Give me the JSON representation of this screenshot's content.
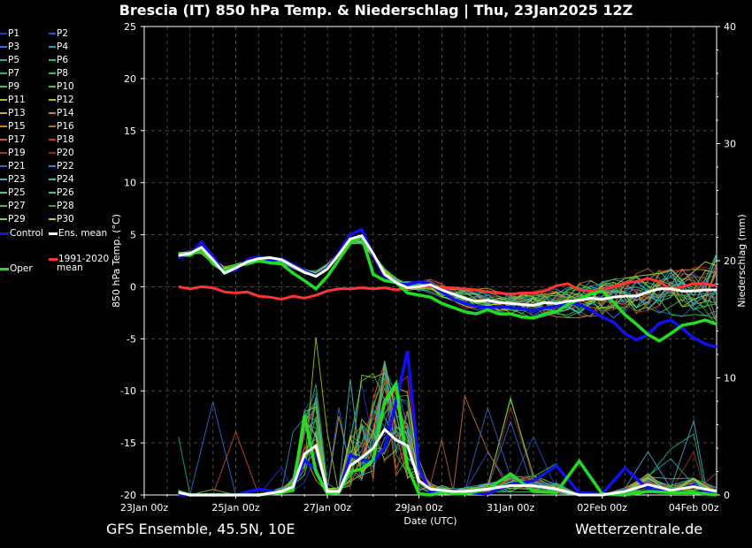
{
  "title": "Brescia  (IT)  850 hPa Temp. & Niederschlag | Thu, 23Jan2025 12Z",
  "footer": {
    "model": "GFS Ensemble, 45.5N, 10E",
    "source": "Wetterzentrale.de"
  },
  "legend": {
    "members": [
      {
        "label": "P1",
        "color": "#2233cc"
      },
      {
        "label": "P2",
        "color": "#2255dd"
      },
      {
        "label": "P3",
        "color": "#2277dd"
      },
      {
        "label": "P4",
        "color": "#2299cc"
      },
      {
        "label": "P5",
        "color": "#22aaaa"
      },
      {
        "label": "P6",
        "color": "#22bb88"
      },
      {
        "label": "P7",
        "color": "#22bb66"
      },
      {
        "label": "P8",
        "color": "#22cc55"
      },
      {
        "label": "P9",
        "color": "#33cc33"
      },
      {
        "label": "P10",
        "color": "#44cc22"
      },
      {
        "label": "P11",
        "color": "#99cc22"
      },
      {
        "label": "P12",
        "color": "#bbbb22"
      },
      {
        "label": "P13",
        "color": "#ccaa22"
      },
      {
        "label": "P14",
        "color": "#cc8822"
      },
      {
        "label": "P15",
        "color": "#cc7733"
      },
      {
        "label": "P16",
        "color": "#bb6633"
      },
      {
        "label": "P17",
        "color": "#cc5533"
      },
      {
        "label": "P18",
        "color": "#cc3333"
      },
      {
        "label": "P19",
        "color": "#aa3322"
      },
      {
        "label": "P20",
        "color": "#992222"
      },
      {
        "label": "P21",
        "color": "#3366cc"
      },
      {
        "label": "P22",
        "color": "#3388dd"
      },
      {
        "label": "P23",
        "color": "#44aacc"
      },
      {
        "label": "P24",
        "color": "#44bbbb"
      },
      {
        "label": "P25",
        "color": "#33cc99"
      },
      {
        "label": "P26",
        "color": "#33cc77"
      },
      {
        "label": "P27",
        "color": "#44bb55"
      },
      {
        "label": "P28",
        "color": "#33aa44"
      },
      {
        "label": "P29",
        "color": "#88cc33"
      },
      {
        "label": "P30",
        "color": "#cccc22"
      }
    ],
    "control": {
      "label": "Control",
      "color": "#1111ee"
    },
    "ens_mean": {
      "label": "Ens. mean",
      "color": "#ffffff"
    },
    "climate": {
      "label_line1": "1991-2020",
      "label_line2": "mean",
      "color": "#ff3333"
    },
    "oper": {
      "label": "Oper",
      "color": "#22dd22"
    }
  },
  "chart_data": {
    "type": "line",
    "xlabel": "Date (UTC)",
    "ylabel_left": "850 hPa Temp. (°C)",
    "ylabel_right": "Niederschlag (mm)",
    "ylim_left": [
      -20,
      25
    ],
    "ylim_right": [
      0,
      40
    ],
    "xlim_days": [
      0,
      12.5
    ],
    "x_ticks": [
      {
        "day": 0,
        "label": "23Jan 00z"
      },
      {
        "day": 2,
        "label": "25Jan 00z"
      },
      {
        "day": 4,
        "label": "27Jan 00z"
      },
      {
        "day": 6,
        "label": "29Jan 00z"
      },
      {
        "day": 8,
        "label": "31Jan 00z"
      },
      {
        "day": 10,
        "label": "02Feb 00z"
      },
      {
        "day": 12,
        "label": "04Feb 00z"
      }
    ],
    "y_ticks_left": [
      25,
      20,
      15,
      10,
      5,
      0,
      -5,
      -10,
      -15,
      -20
    ],
    "y_ticks_right": [
      40,
      30,
      20,
      10,
      0
    ],
    "grid": true,
    "temp_times": [
      0.75,
      1.0,
      1.25,
      1.5,
      1.75,
      2.0,
      2.25,
      2.5,
      2.75,
      3.0,
      3.25,
      3.5,
      3.75,
      4.0,
      4.25,
      4.5,
      4.75,
      5.0,
      5.25,
      5.5,
      5.75,
      6.0,
      6.25,
      6.5,
      6.75,
      7.0,
      7.25,
      7.5,
      7.75,
      8.0,
      8.25,
      8.5,
      8.75,
      9.0,
      9.25,
      9.5,
      9.75,
      10.0,
      10.25,
      10.5,
      10.75,
      11.0,
      11.25,
      11.5,
      11.75,
      12.0,
      12.25,
      12.5
    ],
    "climate_mean": [
      0,
      -0.2,
      0,
      -0.1,
      -0.5,
      -0.6,
      -0.5,
      -0.9,
      -1.0,
      -1.2,
      -0.9,
      -1.1,
      -0.8,
      -0.4,
      -0.2,
      -0.2,
      -0.1,
      -0.2,
      -0.1,
      -0.3,
      -0.1,
      0,
      0,
      -0.1,
      -0.1,
      -0.2,
      -0.3,
      -0.5,
      -0.6,
      -0.7,
      -0.6,
      -0.6,
      -0.4,
      0.1,
      0.3,
      -0.3,
      -0.4,
      -0.3,
      0,
      0.4,
      0.5,
      0.8,
      0.5,
      -0.3,
      0,
      0.3,
      0.3,
      0.1
    ],
    "ens_mean": [
      3.0,
      3.2,
      3.8,
      2.6,
      1.3,
      1.8,
      2.4,
      2.7,
      2.8,
      2.6,
      2.0,
      1.4,
      1.0,
      1.7,
      3.1,
      4.6,
      4.9,
      3.2,
      1.2,
      0.4,
      -0.1,
      0,
      0.2,
      -0.3,
      -0.7,
      -1.1,
      -1.4,
      -1.3,
      -1.5,
      -1.6,
      -1.7,
      -1.8,
      -1.5,
      -1.6,
      -1.4,
      -1.3,
      -1.1,
      -1.2,
      -1.0,
      -0.9,
      -0.9,
      -0.5,
      -0.2,
      -0.2,
      -0.4,
      -0.4,
      -0.3,
      -0.3
    ],
    "control": [
      2.8,
      3.1,
      4.3,
      2.9,
      1.4,
      1.6,
      2.6,
      2.9,
      2.5,
      2.7,
      2.1,
      1.5,
      1.1,
      1.8,
      3.3,
      5.0,
      5.5,
      3.0,
      1.0,
      0.3,
      0.2,
      0.5,
      0.3,
      -0.5,
      -1.2,
      -1.6,
      -1.9,
      -2.0,
      -1.9,
      -2.0,
      -2.1,
      -2.3,
      -2.0,
      -1.9,
      -1.5,
      -1.7,
      -2.2,
      -2.9,
      -3.4,
      -4.5,
      -5.1,
      -4.6,
      -3.5,
      -3.2,
      -4.0,
      -4.9,
      -5.5,
      -5.8
    ],
    "oper": [
      3.1,
      3.0,
      3.7,
      2.2,
      1.5,
      2.0,
      2.2,
      2.5,
      2.3,
      2.2,
      1.3,
      0.6,
      -0.2,
      1.0,
      2.6,
      4.2,
      4.8,
      1.2,
      0.6,
      0.4,
      -0.6,
      -0.8,
      -1.0,
      -1.6,
      -2.0,
      -2.4,
      -2.6,
      -2.2,
      -2.6,
      -2.6,
      -2.9,
      -3.0,
      -2.6,
      -2.4,
      -1.7,
      -1.2,
      -0.7,
      -0.4,
      -1.5,
      -2.7,
      -3.6,
      -4.6,
      -5.2,
      -4.5,
      -3.7,
      -3.5,
      -3.2,
      -3.6
    ],
    "precip_times": [
      0.75,
      1.0,
      1.5,
      2.0,
      2.5,
      3.0,
      3.25,
      3.5,
      3.75,
      4.0,
      4.25,
      4.5,
      4.75,
      5.0,
      5.25,
      5.5,
      5.75,
      6.0,
      6.25,
      6.5,
      6.75,
      7.0,
      7.5,
      8.0,
      8.5,
      9.0,
      9.5,
      10.0,
      10.5,
      11.0,
      11.5,
      12.0,
      12.25,
      12.5
    ],
    "precip_ens_mean": [
      0.2,
      0,
      0,
      0,
      0,
      0.3,
      0.7,
      3.5,
      4.2,
      0.3,
      0.3,
      2.5,
      3.2,
      4.0,
      5.6,
      4.7,
      4.2,
      1.2,
      0.5,
      0.4,
      0.3,
      0.3,
      0.5,
      0.8,
      0.8,
      0.5,
      0,
      0,
      0.3,
      0.9,
      0.4,
      0.7,
      0.5,
      0.3
    ],
    "precip_control": [
      0,
      0,
      0,
      0,
      0.5,
      0.2,
      0.6,
      3.0,
      2.1,
      0.1,
      0.2,
      3.4,
      3.0,
      2.9,
      4.0,
      7.9,
      12.3,
      2.3,
      0.2,
      0.3,
      0.4,
      0.2,
      0.1,
      0.9,
      1.2,
      2.5,
      0.2,
      0.1,
      2.3,
      0.5,
      0.3,
      0.8,
      0.4,
      0.2
    ],
    "precip_oper": [
      0.3,
      0,
      0,
      0,
      0,
      0.2,
      0.4,
      6.8,
      2.0,
      0.1,
      0.2,
      2.0,
      2.2,
      3.0,
      8.0,
      9.5,
      2.4,
      0.1,
      0,
      0.2,
      0.1,
      0.1,
      0.5,
      1.8,
      0.3,
      0.2,
      2.9,
      0.1,
      0,
      0.3,
      0.2,
      0.2,
      0.1,
      0
    ]
  }
}
